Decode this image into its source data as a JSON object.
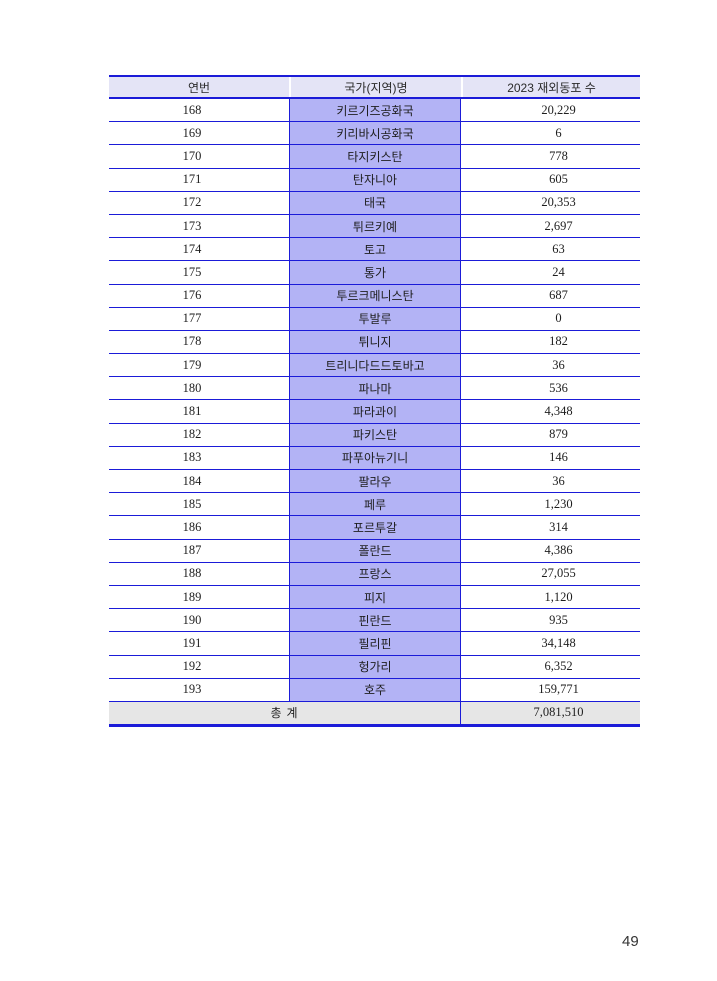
{
  "page": {
    "number": "49"
  },
  "colors": {
    "border_blue": "#1b1bd8",
    "header_bg": "#e4e4f6",
    "country_bg": "#b3b3f5",
    "total_bg": "#e6e6e6",
    "text_color": "#1e1e1e"
  },
  "table": {
    "headers": [
      "연번",
      "국가(지역)명",
      "2023 재외동포 수"
    ],
    "rows": [
      [
        "168",
        "키르기즈공화국",
        "20,229"
      ],
      [
        "169",
        "키리바시공화국",
        "6"
      ],
      [
        "170",
        "타지키스탄",
        "778"
      ],
      [
        "171",
        "탄자니아",
        "605"
      ],
      [
        "172",
        "태국",
        "20,353"
      ],
      [
        "173",
        "튀르키예",
        "2,697"
      ],
      [
        "174",
        "토고",
        "63"
      ],
      [
        "175",
        "통가",
        "24"
      ],
      [
        "176",
        "투르크메니스탄",
        "687"
      ],
      [
        "177",
        "투발루",
        "0"
      ],
      [
        "178",
        "튀니지",
        "182"
      ],
      [
        "179",
        "트리니다드드토바고",
        "36"
      ],
      [
        "180",
        "파나마",
        "536"
      ],
      [
        "181",
        "파라과이",
        "4,348"
      ],
      [
        "182",
        "파키스탄",
        "879"
      ],
      [
        "183",
        "파푸아뉴기니",
        "146"
      ],
      [
        "184",
        "팔라우",
        "36"
      ],
      [
        "185",
        "페루",
        "1,230"
      ],
      [
        "186",
        "포르투갈",
        "314"
      ],
      [
        "187",
        "폴란드",
        "4,386"
      ],
      [
        "188",
        "프랑스",
        "27,055"
      ],
      [
        "189",
        "피지",
        "1,120"
      ],
      [
        "190",
        "핀란드",
        "935"
      ],
      [
        "191",
        "필리핀",
        "34,148"
      ],
      [
        "192",
        "헝가리",
        "6,352"
      ],
      [
        "193",
        "호주",
        "159,771"
      ]
    ],
    "total": {
      "label": "총 계",
      "value": "7,081,510"
    }
  }
}
